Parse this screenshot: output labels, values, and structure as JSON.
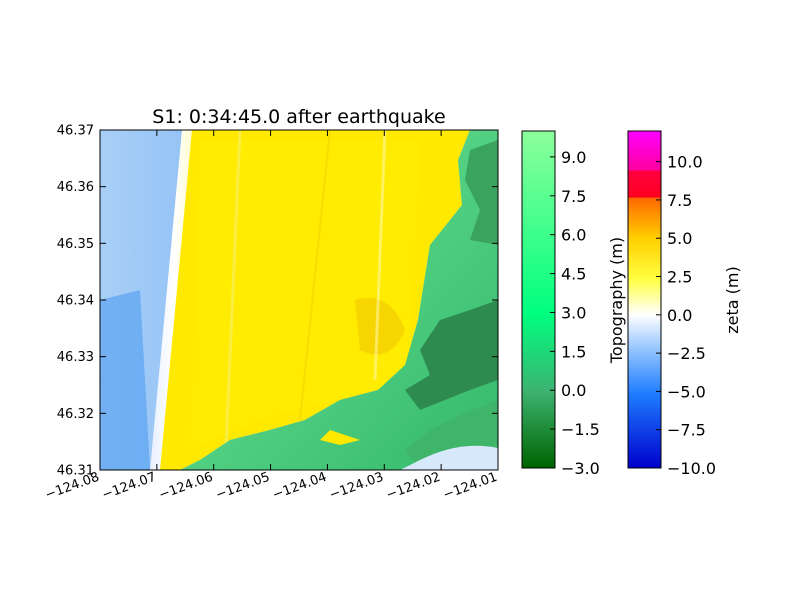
{
  "chart_data": {
    "type": "heatmap",
    "title": "S1: 0:34:45.0 after earthquake",
    "xlabel": "",
    "ylabel": "",
    "xlim": [
      -124.08,
      -124.01
    ],
    "ylim": [
      46.31,
      46.37
    ],
    "x_ticks": [
      "−124.08",
      "−124.07",
      "−124.06",
      "−124.05",
      "−124.04",
      "−124.03",
      "−124.02",
      "−124.01"
    ],
    "y_ticks": [
      "46.31",
      "46.32",
      "46.33",
      "46.34",
      "46.35",
      "46.36",
      "46.37"
    ],
    "colorbars": [
      {
        "label": "Topography (m)",
        "range": [
          -3.0,
          10.0
        ],
        "ticks": [
          "−3.0",
          "−1.5",
          "0.0",
          "1.5",
          "3.0",
          "4.5",
          "6.0",
          "7.5",
          "9.0"
        ],
        "colors": [
          "#006400",
          "#3cb371",
          "#00ff7f",
          "#7fff9f"
        ]
      },
      {
        "label": "zeta (m)",
        "range": [
          -10.0,
          12.0
        ],
        "ticks": [
          "−10.0",
          "−7.5",
          "−5.0",
          "−2.5",
          "0.0",
          "2.5",
          "5.0",
          "7.5",
          "10.0"
        ],
        "colors": [
          "#0000cd",
          "#1e90ff",
          "#ffffff",
          "#ffff00",
          "#ff6a00",
          "#ff0000",
          "#ff00ff"
        ]
      }
    ],
    "grid": false
  }
}
